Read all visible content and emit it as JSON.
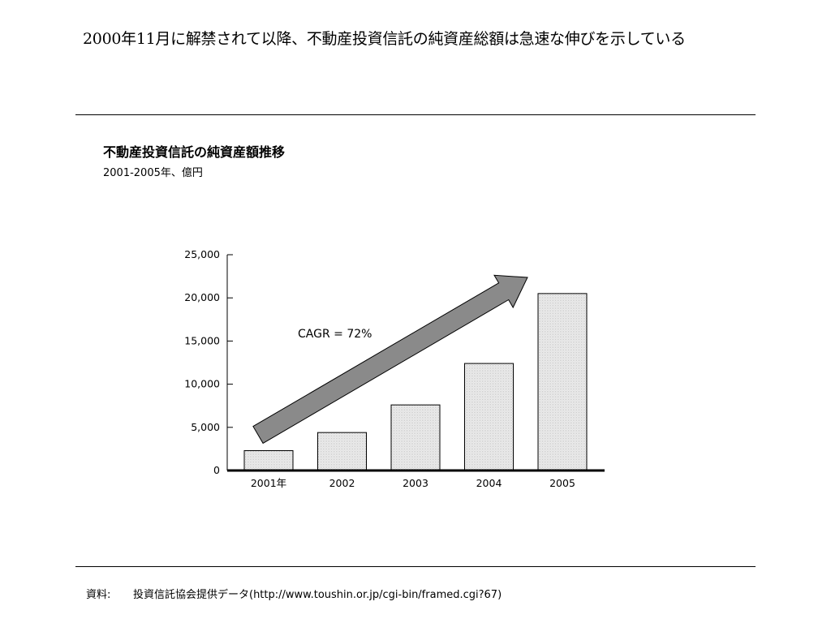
{
  "headline": "2000年11月に解禁されて以降、不動産投資信託の純資産総額は急速な伸びを示している",
  "chart_data": {
    "type": "bar",
    "title": "不動産投資信託の純資産額推移",
    "subtitle": "2001-2005年、億円",
    "categories": [
      "2001年",
      "2002",
      "2003",
      "2004",
      "2005"
    ],
    "values": [
      2300,
      4400,
      7600,
      12400,
      20500
    ],
    "ylim": [
      0,
      25000
    ],
    "yticks": [
      0,
      5000,
      10000,
      15000,
      20000,
      25000
    ],
    "ytick_labels": [
      "0",
      "5,000",
      "10,000",
      "15,000",
      "20,000",
      "25,000"
    ],
    "annotation": "CAGR = 72%",
    "grid": false
  },
  "source": {
    "label": "資料:",
    "text": "投資信託協会提供データ(http://www.toushin.or.jp/cgi-bin/framed.cgi?67)"
  },
  "colors": {
    "bar_fill": "#ececec",
    "arrow_fill": "#8a8a8a",
    "axis": "#000000"
  }
}
